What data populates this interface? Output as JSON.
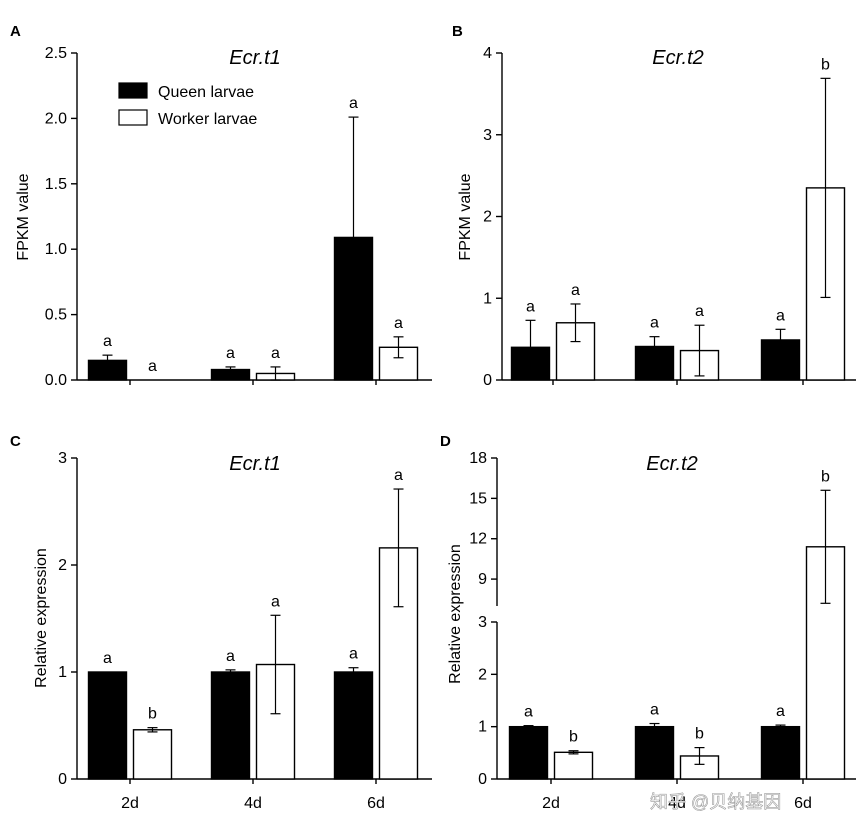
{
  "chart_data": {
    "type": "bar",
    "legend": {
      "placement": "top-left",
      "entries": [
        {
          "name": "Queen larvae",
          "color": "#000000"
        },
        {
          "name": "Worker larvae",
          "color": "#ffffff"
        }
      ]
    },
    "shared_categories": [
      "2d",
      "4d",
      "6d"
    ],
    "panels": [
      {
        "letter": "A",
        "title": "Ecr.t1",
        "ylabel": "FPKM value",
        "ylim": [
          0,
          2.5
        ],
        "yticks": [
          "0.0",
          "0.5",
          "1.0",
          "1.5",
          "2.0",
          "2.5"
        ],
        "categories": [
          "2d",
          "4d",
          "6d"
        ],
        "series": [
          {
            "name": "Queen larvae",
            "values": [
              0.15,
              0.08,
              1.09
            ],
            "errors": [
              0.04,
              0.02,
              0.92
            ],
            "labels": [
              "a",
              "a",
              "a"
            ]
          },
          {
            "name": "Worker larvae",
            "values": [
              0.0,
              0.05,
              0.25
            ],
            "errors": [
              0.0,
              0.05,
              0.08
            ],
            "labels": [
              "a",
              "a",
              "a"
            ]
          }
        ]
      },
      {
        "letter": "B",
        "title": "Ecr.t2",
        "ylabel": "FPKM value",
        "ylim": [
          0,
          4
        ],
        "yticks": [
          "0",
          "1",
          "2",
          "3",
          "4"
        ],
        "categories": [
          "2d",
          "4d",
          "6d"
        ],
        "series": [
          {
            "name": "Queen larvae",
            "values": [
              0.4,
              0.41,
              0.49
            ],
            "errors": [
              0.33,
              0.12,
              0.13
            ],
            "labels": [
              "a",
              "a",
              "a"
            ]
          },
          {
            "name": "Worker larvae",
            "values": [
              0.7,
              0.36,
              2.35
            ],
            "errors": [
              0.23,
              0.31,
              1.34
            ],
            "labels": [
              "a",
              "a",
              "b"
            ]
          }
        ]
      },
      {
        "letter": "C",
        "title": "Ecr.t1",
        "ylabel": "Relative expression",
        "ylim": [
          0,
          3
        ],
        "yticks": [
          "0",
          "1",
          "2",
          "3"
        ],
        "categories": [
          "2d",
          "4d",
          "6d"
        ],
        "series": [
          {
            "name": "Queen larvae",
            "values": [
              1.0,
              1.0,
              1.0
            ],
            "errors": [
              0.0,
              0.02,
              0.04
            ],
            "labels": [
              "a",
              "a",
              "a"
            ]
          },
          {
            "name": "Worker larvae",
            "values": [
              0.46,
              1.07,
              2.16
            ],
            "errors": [
              0.02,
              0.46,
              0.55
            ],
            "labels": [
              "b",
              "a",
              "a"
            ]
          }
        ]
      },
      {
        "letter": "D",
        "title": "Ecr.t2",
        "ylabel": "Relative expression",
        "ylim": [
          0,
          18
        ],
        "axis_break": {
          "from": 3,
          "to": 7
        },
        "yticks": [
          "0",
          "1",
          "2",
          "3",
          "9",
          "12",
          "15",
          "18"
        ],
        "categories": [
          "2d",
          "4d",
          "6d"
        ],
        "series": [
          {
            "name": "Queen larvae",
            "values": [
              1.0,
              1.0,
              1.0
            ],
            "errors": [
              0.02,
              0.06,
              0.03
            ],
            "labels": [
              "a",
              "a",
              "a"
            ]
          },
          {
            "name": "Worker larvae",
            "values": [
              0.51,
              0.44,
              11.4
            ],
            "errors": [
              0.03,
              0.16,
              4.2
            ],
            "labels": [
              "b",
              "b",
              "b"
            ]
          }
        ]
      }
    ]
  },
  "watermark": "知乎 @贝纳基因",
  "colors": {
    "queen": "#000000",
    "worker": "#ffffff",
    "stroke": "#000000"
  }
}
